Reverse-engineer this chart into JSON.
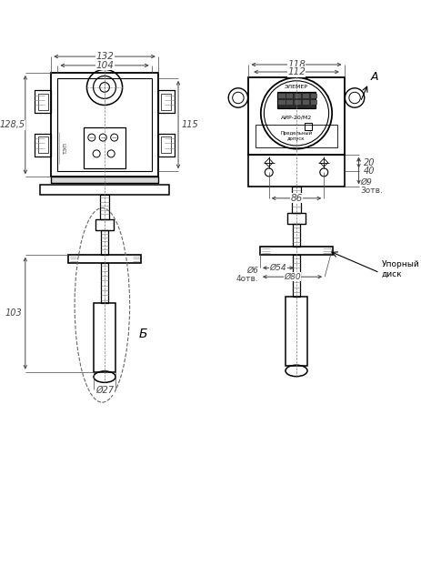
{
  "bg_color": "#ffffff",
  "line_color": "#000000",
  "dim_color": "#444444",
  "fig_width": 4.63,
  "fig_height": 6.44,
  "dpi": 100,
  "annotations": {
    "dim_132": "132",
    "dim_104": "104",
    "dim_128_5": "128,5",
    "dim_115": "115",
    "dim_118": "118",
    "dim_112": "112",
    "dim_20": "20",
    "dim_40": "40",
    "dim_86": "86",
    "dim_d9": "Ø9",
    "dim_3otv": "3отв.",
    "dim_d54": "Ø54",
    "dim_d80": "Ø80",
    "dim_d6": "Ø6",
    "dim_4otv": "4отв.",
    "dim_103": "103",
    "dim_d27": "Ø27",
    "label_B": "Б",
    "label_A": "A",
    "label_disk": "Упорный\nдиск"
  }
}
